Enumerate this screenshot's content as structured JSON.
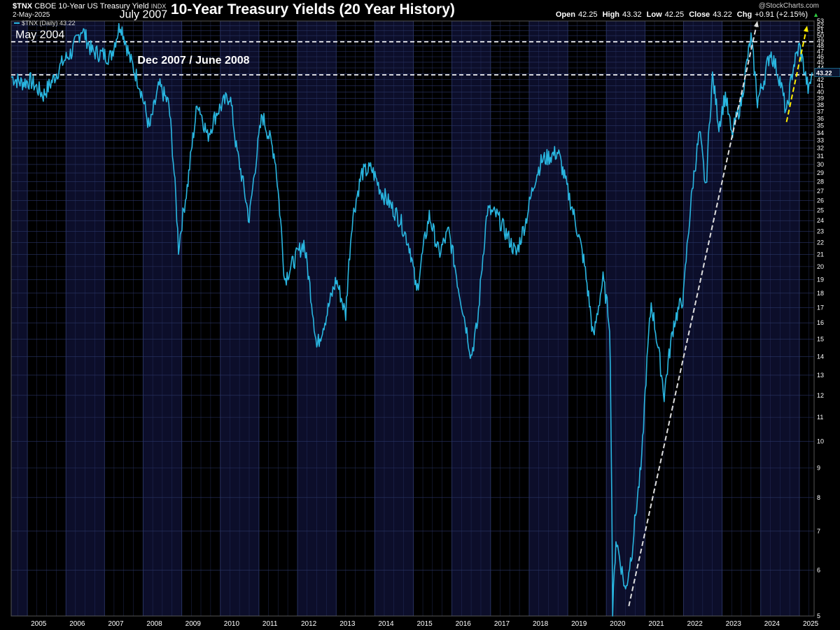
{
  "header": {
    "symbol": "$TNX",
    "description": "CBOE 10-Year US Treasury Yield",
    "exchange": "INDX",
    "date": "2-May-2025",
    "legend_label": "$TNX (Daily) 43.22",
    "title": "10-Year Treasury Yields (20 Year History)",
    "brand": "@StockCharts.com",
    "ohlc": {
      "open_label": "Open",
      "open": "42.25",
      "high_label": "High",
      "high": "43.32",
      "low_label": "Low",
      "low": "42.25",
      "close_label": "Close",
      "close": "43.22",
      "chg_label": "Chg",
      "chg": "+0.91 (+2.15%)"
    }
  },
  "colors": {
    "background": "#000000",
    "panel_alt": "#0c0e2a",
    "grid": "#2a3566",
    "price_line": "#29b6e0",
    "white_dashed": "#ffffff",
    "trend_white": "#dddddd",
    "trend_yellow": "#ffee00"
  },
  "chart_data": {
    "type": "line",
    "scale": "log",
    "ylim": [
      5,
      53
    ],
    "x_tick_labels": [
      "2005",
      "2006",
      "2007",
      "2008",
      "2009",
      "2010",
      "2011",
      "2012",
      "2013",
      "2014",
      "2015",
      "2016",
      "2017",
      "2018",
      "2019",
      "2020",
      "2021",
      "2022",
      "2023",
      "2024",
      "2025"
    ],
    "y_tick_labels": [
      5,
      6,
      7,
      8,
      9,
      10,
      11,
      12,
      13,
      14,
      15,
      16,
      17,
      18,
      19,
      20,
      21,
      22,
      23,
      24,
      25,
      26,
      27,
      28,
      29,
      30,
      31,
      32,
      33,
      34,
      35,
      36,
      37,
      38,
      39,
      40,
      41,
      42,
      43,
      44,
      45,
      46,
      47,
      48,
      49,
      50,
      51,
      52,
      53
    ],
    "last_value_label": "43.22",
    "series": [
      {
        "values_by_date": [
          [
            "2004-08-01",
            42.5
          ],
          [
            "2004-11-01",
            41.5
          ],
          [
            "2005-02-01",
            41.8
          ],
          [
            "2005-06-01",
            39.5
          ],
          [
            "2005-09-01",
            42
          ],
          [
            "2005-12-01",
            45
          ],
          [
            "2006-03-01",
            47
          ],
          [
            "2006-06-01",
            51.5
          ],
          [
            "2006-09-01",
            47
          ],
          [
            "2006-12-01",
            46.5
          ],
          [
            "2007-03-01",
            46
          ],
          [
            "2007-06-01",
            52.5
          ],
          [
            "2007-09-01",
            45.5
          ],
          [
            "2007-12-01",
            41
          ],
          [
            "2008-03-01",
            34.5
          ],
          [
            "2008-06-01",
            41
          ],
          [
            "2008-09-01",
            38
          ],
          [
            "2008-12-01",
            21.5
          ],
          [
            "2009-03-01",
            28
          ],
          [
            "2009-06-01",
            38.5
          ],
          [
            "2009-09-01",
            33.5
          ],
          [
            "2009-12-01",
            37
          ],
          [
            "2010-04-01",
            39.5
          ],
          [
            "2010-06-01",
            32
          ],
          [
            "2010-10-01",
            24
          ],
          [
            "2011-02-01",
            36.5
          ],
          [
            "2011-06-01",
            31
          ],
          [
            "2011-09-01",
            19
          ],
          [
            "2012-03-01",
            22
          ],
          [
            "2012-07-01",
            14.5
          ],
          [
            "2012-10-01",
            16.5
          ],
          [
            "2013-01-01",
            19
          ],
          [
            "2013-04-01",
            16.5
          ],
          [
            "2013-06-01",
            24
          ],
          [
            "2013-09-01",
            29
          ],
          [
            "2013-12-01",
            29.5
          ],
          [
            "2014-03-01",
            27
          ],
          [
            "2014-06-01",
            25.5
          ],
          [
            "2014-09-01",
            24
          ],
          [
            "2014-12-01",
            21.5
          ],
          [
            "2015-02-01",
            18
          ],
          [
            "2015-06-01",
            24.5
          ],
          [
            "2015-09-01",
            21
          ],
          [
            "2015-12-01",
            23
          ],
          [
            "2016-03-01",
            18.5
          ],
          [
            "2016-07-01",
            14
          ],
          [
            "2016-09-01",
            16
          ],
          [
            "2016-12-01",
            25
          ],
          [
            "2017-03-01",
            24.5
          ],
          [
            "2017-09-01",
            21
          ],
          [
            "2017-12-01",
            24
          ],
          [
            "2018-03-01",
            28.5
          ],
          [
            "2018-05-01",
            30.5
          ],
          [
            "2018-10-01",
            31.5
          ],
          [
            "2019-01-01",
            27
          ],
          [
            "2019-03-01",
            24.5
          ],
          [
            "2019-06-01",
            20.5
          ],
          [
            "2019-09-01",
            15
          ],
          [
            "2019-12-01",
            19
          ],
          [
            "2020-02-01",
            16
          ],
          [
            "2020-03-01",
            5.0
          ],
          [
            "2020-04-01",
            6.8
          ],
          [
            "2020-07-01",
            5.5
          ],
          [
            "2020-09-01",
            6.5
          ],
          [
            "2020-12-01",
            9.2
          ],
          [
            "2021-03-01",
            17.3
          ],
          [
            "2021-07-01",
            12
          ],
          [
            "2021-10-01",
            16
          ],
          [
            "2022-01-01",
            17.8
          ],
          [
            "2022-04-01",
            28
          ],
          [
            "2022-06-01",
            34
          ],
          [
            "2022-08-01",
            27
          ],
          [
            "2022-10-01",
            42.5
          ],
          [
            "2022-12-01",
            35
          ],
          [
            "2023-02-01",
            39.5
          ],
          [
            "2023-04-01",
            33.5
          ],
          [
            "2023-07-01",
            38.5
          ],
          [
            "2023-10-01",
            49.5
          ],
          [
            "2023-12-01",
            38.5
          ],
          [
            "2024-02-01",
            42
          ],
          [
            "2024-04-01",
            47
          ],
          [
            "2024-07-01",
            42
          ],
          [
            "2024-09-01",
            36.5
          ],
          [
            "2024-11-01",
            44
          ],
          [
            "2025-01-01",
            48
          ],
          [
            "2025-03-01",
            42.5
          ],
          [
            "2025-04-01",
            40
          ],
          [
            "2025-05-02",
            43.22
          ]
        ]
      }
    ],
    "reference_lines": [
      {
        "value": 48.8,
        "label": "May 2004",
        "style": "white-dashed"
      },
      {
        "value": 42.8,
        "label": "Dec 2007 / June 2008",
        "style": "white-dashed"
      }
    ],
    "annotations": [
      {
        "label": "May 2004",
        "date": "2004-05-01",
        "value": 49
      },
      {
        "label": "July 2007",
        "date": "2007-07-01",
        "value": 52.5
      },
      {
        "label": "Dec 2007 / June 2008",
        "date": "2008-01-01",
        "value": 44
      }
    ],
    "trend_arrows": [
      {
        "color": "white",
        "from": [
          "2020-08-01",
          5.2
        ],
        "to": [
          "2023-12-01",
          53
        ]
      },
      {
        "color": "yellow",
        "from": [
          "2024-09-01",
          35.5
        ],
        "to": [
          "2025-03-15",
          52
        ]
      }
    ]
  }
}
